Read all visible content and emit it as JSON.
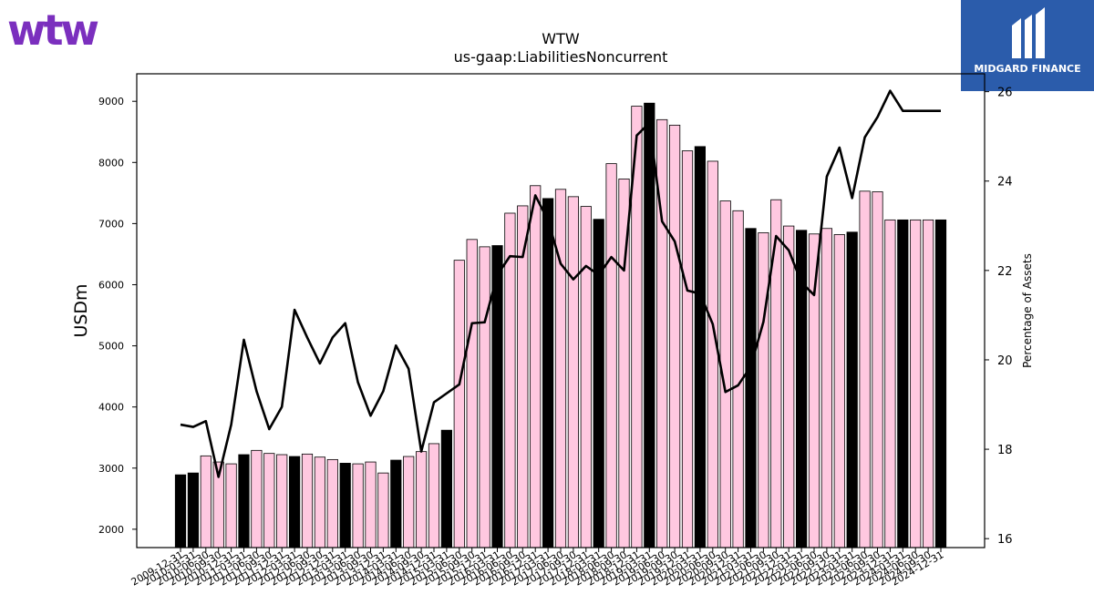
{
  "brand": {
    "left_logo_text": "wtw",
    "left_logo_color": "#7b2fbe",
    "right_logo_text": "MIDGARD FINANCE",
    "right_logo_bg": "#2b5cab"
  },
  "chart_data": {
    "type": "bar",
    "title": "WTW",
    "subtitle": "us-gaap:LiabilitiesNoncurrent",
    "ylabel": "USDm",
    "y2label": "Percentage of Assets",
    "ylim": [
      1700,
      9450
    ],
    "y2lim": [
      15.8,
      26.4
    ],
    "yticks": [
      2000,
      3000,
      4000,
      5000,
      6000,
      7000,
      8000,
      9000
    ],
    "y2ticks": [
      16,
      18,
      20,
      22,
      24,
      26
    ],
    "colors": {
      "annual_bar": "#000000",
      "quarter_bar": "#ffc8e0",
      "line": "#000000"
    },
    "categories": [
      "2009-12-31",
      "2010-03-31",
      "2010-06-30",
      "2010-09-30",
      "2010-12-31",
      "2011-03-31",
      "2011-06-30",
      "2011-09-30",
      "2011-12-31",
      "2012-03-31",
      "2012-06-30",
      "2012-09-30",
      "2012-12-31",
      "2013-03-31",
      "2013-06-30",
      "2013-09-30",
      "2013-12-31",
      "2014-03-31",
      "2014-06-30",
      "2014-09-30",
      "2014-12-31",
      "2015-03-31",
      "2015-06-30",
      "2015-09-30",
      "2015-12-31",
      "2016-03-31",
      "2016-06-30",
      "2016-09-30",
      "2016-12-31",
      "2017-03-31",
      "2017-06-30",
      "2017-09-30",
      "2017-12-31",
      "2018-03-31",
      "2018-06-30",
      "2018-09-30",
      "2018-12-31",
      "2019-03-31",
      "2019-06-30",
      "2019-09-30",
      "2019-12-31",
      "2020-03-31",
      "2020-06-30",
      "2020-09-30",
      "2020-12-31",
      "2021-03-31",
      "2021-06-30",
      "2021-09-30",
      "2021-12-31",
      "2022-03-31",
      "2022-06-30",
      "2022-09-30",
      "2022-12-31",
      "2023-03-31",
      "2023-06-30",
      "2023-09-30",
      "2023-12-31",
      "2024-03-31",
      "2024-06-30",
      "2024-09-30",
      "2024-12-31"
    ],
    "values": [
      2890,
      2920,
      3200,
      3100,
      3070,
      3220,
      3290,
      3240,
      3220,
      3190,
      3230,
      3180,
      3140,
      3080,
      3070,
      3100,
      2920,
      3130,
      3190,
      3270,
      3400,
      3620,
      6400,
      6740,
      6620,
      6640,
      7170,
      7290,
      7620,
      7410,
      7560,
      7440,
      7280,
      7070,
      7980,
      7730,
      8920,
      8970,
      8700,
      8610,
      8190,
      8260,
      8020,
      7370,
      7210,
      6920,
      6850,
      7390,
      6960,
      6890,
      6830,
      6920,
      6820,
      6860,
      7530,
      7520,
      7060,
      7060,
      7060,
      7060,
      7060
    ],
    "annual": [
      true,
      true,
      false,
      false,
      false,
      true,
      false,
      false,
      false,
      true,
      false,
      false,
      false,
      true,
      false,
      false,
      false,
      true,
      false,
      false,
      false,
      true,
      false,
      false,
      false,
      true,
      false,
      false,
      false,
      true,
      false,
      false,
      false,
      true,
      false,
      false,
      false,
      true,
      false,
      false,
      false,
      true,
      false,
      false,
      false,
      true,
      false,
      false,
      false,
      true,
      false,
      false,
      false,
      true,
      false,
      false,
      false,
      true,
      false,
      false,
      true
    ],
    "line_series": {
      "name": "",
      "values": [
        18.55,
        18.5,
        18.63,
        17.38,
        18.55,
        20.45,
        19.3,
        18.45,
        18.95,
        21.12,
        20.5,
        19.92,
        20.5,
        20.82,
        19.5,
        18.75,
        19.3,
        20.32,
        19.8,
        17.95,
        19.05,
        19.25,
        19.45,
        20.82,
        20.84,
        21.9,
        22.32,
        22.3,
        23.68,
        23.12,
        22.15,
        21.8,
        22.1,
        21.9,
        22.3,
        22.0,
        25.02,
        25.3,
        23.1,
        22.65,
        21.55,
        21.48,
        20.8,
        19.28,
        19.43,
        19.85,
        20.85,
        22.77,
        22.45,
        21.73,
        21.45,
        24.1,
        24.75,
        23.62,
        24.98,
        25.43,
        26.02,
        25.57,
        25.57,
        25.57,
        25.57
      ]
    }
  }
}
